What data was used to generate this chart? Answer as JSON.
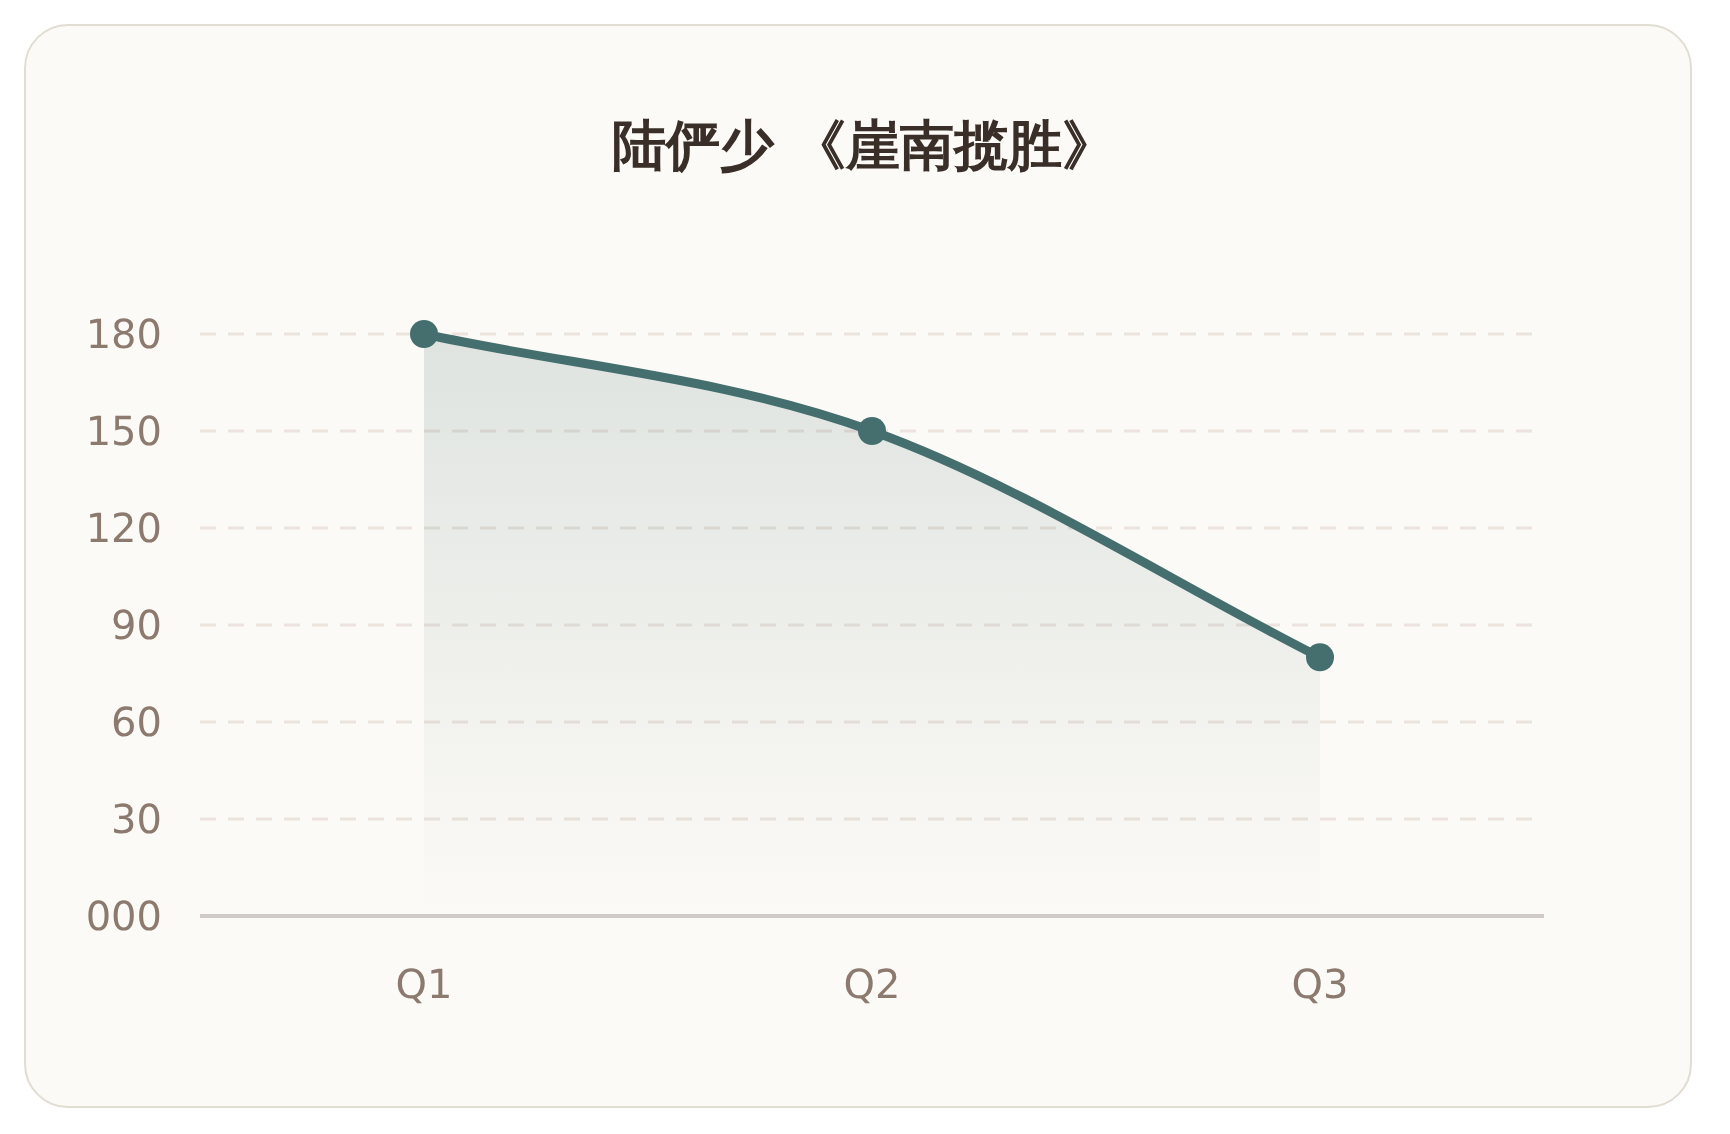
{
  "chart_data": {
    "type": "area",
    "title": "陆俨少 《崖南揽胜》",
    "categories": [
      "Q1",
      "Q2",
      "Q3"
    ],
    "series": [
      {
        "color": "#456e6e",
        "values": [
          180,
          150,
          80
        ]
      }
    ],
    "ylim": [
      0,
      180
    ],
    "yticks": [
      {
        "value": 0,
        "label": "000"
      },
      30,
      60,
      90,
      120,
      150,
      180
    ],
    "grid": "y",
    "marker": "circle",
    "line_style": "solid"
  }
}
